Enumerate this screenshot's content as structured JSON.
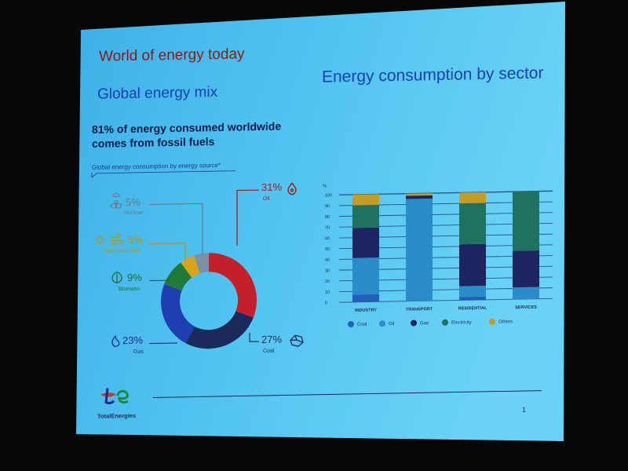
{
  "slide": {
    "title": "World of energy today",
    "left_heading": "Global energy mix",
    "subtitle_line1": "81% of energy consumed worldwide",
    "subtitle_line2": "comes from fossil fuels",
    "caption": "Global energy consumption by energy source*",
    "right_heading": "Energy consumption by sector",
    "page_number": "1",
    "logo_text": "TotalEnergies"
  },
  "chart_data": [
    {
      "type": "pie",
      "title": "Global energy consumption by energy source*",
      "slices": [
        {
          "label": "Oil",
          "value": 31,
          "display": "31%",
          "color": "#c2202a"
        },
        {
          "label": "Coal",
          "value": 27,
          "display": "27%",
          "color": "#1a2a5a"
        },
        {
          "label": "Gas",
          "value": 23,
          "display": "23%",
          "color": "#1f3fb0"
        },
        {
          "label": "Biomass",
          "value": 9,
          "display": "9%",
          "color": "#1f7a3a"
        },
        {
          "label": "Solar and wind",
          "value": 5,
          "display": "5%",
          "color": "#d9a31a"
        },
        {
          "label": "Nuclear",
          "value": 5,
          "display": "5%",
          "color": "#7a92a6"
        }
      ]
    },
    {
      "type": "bar",
      "stacked": true,
      "title": "Energy consumption by sector",
      "ylabel": "%",
      "ylim": [
        0,
        100
      ],
      "yticks": [
        "0",
        "10",
        "20",
        "30",
        "40",
        "50",
        "60",
        "70",
        "80",
        "90",
        "100"
      ],
      "categories": [
        "INDUSTRY",
        "TRANSPORT",
        "RESIDENTIAL",
        "SERVICES"
      ],
      "series": [
        {
          "name": "Coal",
          "color": "#2060b8",
          "values": [
            7,
            0,
            3,
            0
          ]
        },
        {
          "name": "Oil",
          "color": "#2a8cc8",
          "values": [
            34,
            95,
            10,
            11
          ]
        },
        {
          "name": "Gas",
          "color": "#1c2560",
          "values": [
            28,
            3,
            39,
            34
          ]
        },
        {
          "name": "Electricity",
          "color": "#1f7260",
          "values": [
            21,
            0,
            38,
            55
          ]
        },
        {
          "name": "Others",
          "color": "#c49a28",
          "values": [
            10,
            2,
            10,
            0
          ]
        }
      ],
      "legend_position": "bottom"
    }
  ]
}
